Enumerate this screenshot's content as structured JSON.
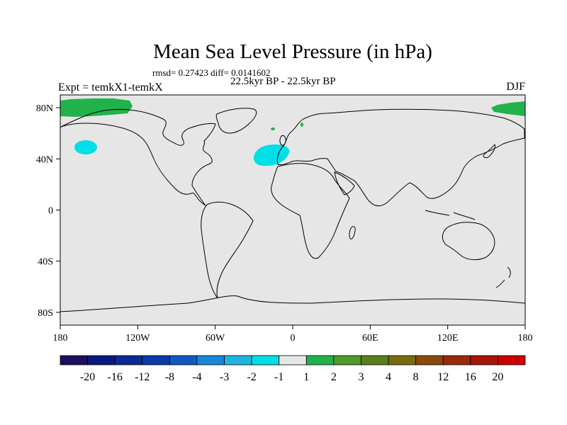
{
  "chart_data": {
    "type": "heatmap",
    "title": "Mean Sea Level Pressure (in hPa)",
    "stats_line": "rmsd= 0.27423 diff= 0.0141602",
    "subtitle": "22.5kyr BP - 22.5kyr BP",
    "left_label": "Expt = temkX1-temkX",
    "right_label": "DJF",
    "xlim": [
      -180,
      180
    ],
    "ylim": [
      -90,
      90
    ],
    "x_ticks": [
      {
        "value": -180,
        "label": "180"
      },
      {
        "value": -120,
        "label": "120W"
      },
      {
        "value": -60,
        "label": "60W"
      },
      {
        "value": 0,
        "label": "0"
      },
      {
        "value": 60,
        "label": "60E"
      },
      {
        "value": 120,
        "label": "120E"
      },
      {
        "value": 180,
        "label": "180"
      }
    ],
    "y_ticks": [
      {
        "value": 80,
        "label": "80N"
      },
      {
        "value": 40,
        "label": "40N"
      },
      {
        "value": 0,
        "label": "0"
      },
      {
        "value": -40,
        "label": "40S"
      },
      {
        "value": -80,
        "label": "80S"
      }
    ],
    "colorbar": {
      "levels": [
        "-20",
        "-16",
        "-12",
        "-8",
        "-4",
        "-3",
        "-2",
        "-1",
        "1",
        "2",
        "3",
        "4",
        "8",
        "12",
        "16",
        "20"
      ],
      "colors": [
        "#1d0f5e",
        "#0a1a7e",
        "#0b2a96",
        "#0a3aa8",
        "#0f5ac2",
        "#1b86d8",
        "#20b4e2",
        "#00dfe8",
        "#e6e6e6",
        "#22b24c",
        "#4f9a2a",
        "#5b7f1b",
        "#7a6a10",
        "#8a4a0c",
        "#982a0a",
        "#a81208",
        "#cc0000"
      ]
    },
    "anomaly_regions": [
      {
        "name": "arctic-pacific-west",
        "lon_min": -180,
        "lon_max": -137,
        "lat_min": 74,
        "lat_max": 88,
        "bin": "1 to 2",
        "color": "#22b24c"
      },
      {
        "name": "arctic-pacific-east",
        "lon_min": 155,
        "lon_max": 180,
        "lat_min": 75,
        "lat_max": 86,
        "bin": "1 to 2",
        "color": "#22b24c"
      },
      {
        "name": "north-pacific",
        "lon_center": -163,
        "lat_center": 52,
        "bin": "-2 to -1",
        "color": "#00dfe8"
      },
      {
        "name": "north-atlantic",
        "lon_center": -12,
        "lat_center": 42,
        "bin": "-2 to -1",
        "color": "#00dfe8"
      },
      {
        "name": "scandinavia-spot",
        "lon_center": 9,
        "lat_center": 66,
        "bin": "1 to 2",
        "color": "#22b24c"
      },
      {
        "name": "barents-spot",
        "lon_center": -15,
        "lat_center": 63,
        "bin": "1 to 2",
        "color": "#22b24c"
      }
    ]
  },
  "colors": {
    "background_field": "#e6e6e6",
    "coastline": "#000000"
  }
}
